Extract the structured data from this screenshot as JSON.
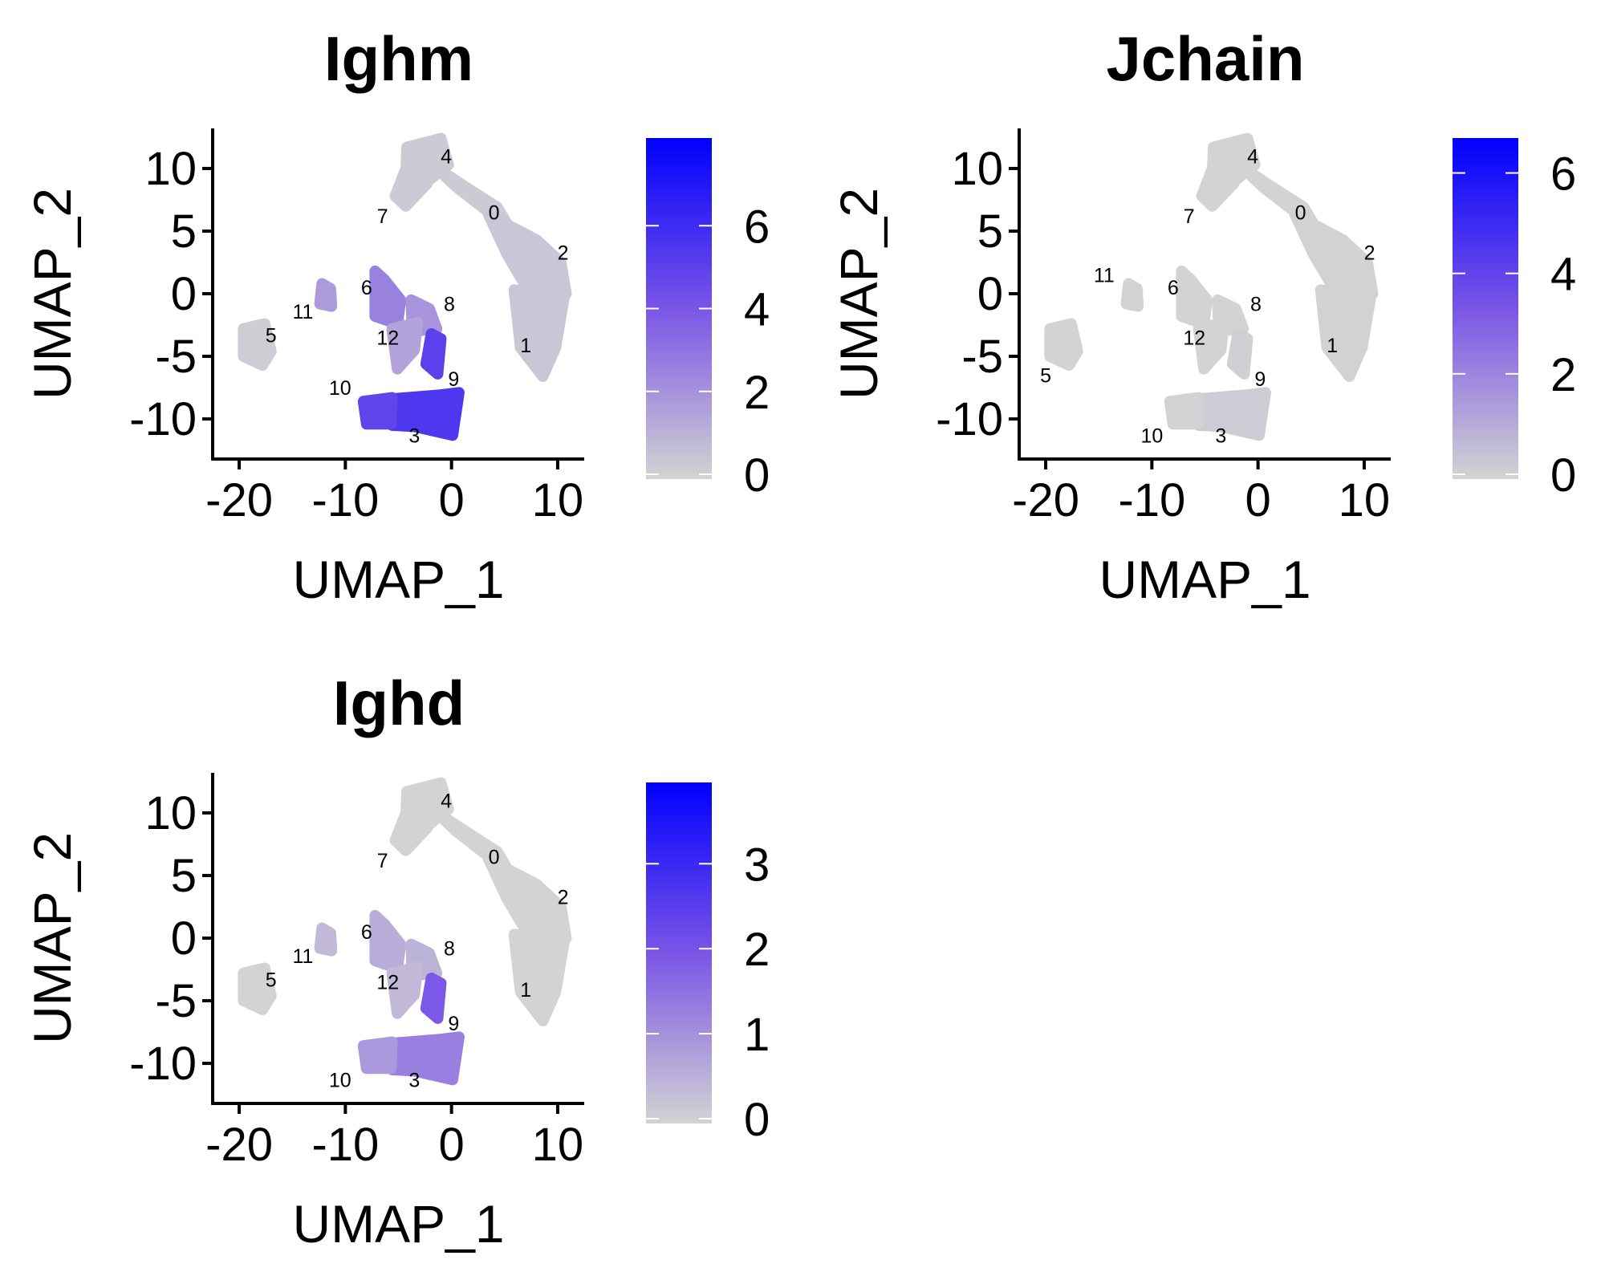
{
  "chart_data": [
    {
      "type": "scatter",
      "title": "Ighm",
      "xlabel": "UMAP_1",
      "ylabel": "UMAP_2",
      "xlim": [
        -22.5,
        12.5
      ],
      "ylim": [
        -13.2,
        13.2
      ],
      "xticks": [
        -20,
        -10,
        0,
        10
      ],
      "yticks": [
        10,
        5,
        0,
        -5,
        -10
      ],
      "xtick_labels": [
        "-20",
        "-10",
        "0",
        "10"
      ],
      "ytick_labels": [
        "10",
        "5",
        "0",
        "-5",
        "-10"
      ],
      "colorbar": {
        "min": 0,
        "max": 8,
        "ticks": [
          0,
          2,
          4,
          6
        ],
        "tick_labels": [
          "0",
          "2",
          "4",
          "6"
        ],
        "low_color": "#d3d3d3",
        "high_color": "#0000ff"
      },
      "cluster_labels": [
        {
          "text": "4",
          "x": -0.5,
          "y": 11
        },
        {
          "text": "7",
          "x": -6.5,
          "y": 6.2
        },
        {
          "text": "0",
          "x": 4,
          "y": 6.5
        },
        {
          "text": "2",
          "x": 10.5,
          "y": 3.3
        },
        {
          "text": "11",
          "x": -14,
          "y": -1.4
        },
        {
          "text": "6",
          "x": -8,
          "y": 0.5
        },
        {
          "text": "8",
          "x": -0.2,
          "y": -0.8
        },
        {
          "text": "5",
          "x": -17,
          "y": -3.3
        },
        {
          "text": "12",
          "x": -6,
          "y": -3.5
        },
        {
          "text": "1",
          "x": 7,
          "y": -4.1
        },
        {
          "text": "10",
          "x": -10.5,
          "y": -7.5
        },
        {
          "text": "9",
          "x": 0.2,
          "y": -6.8
        },
        {
          "text": "3",
          "x": -3.5,
          "y": -11.3
        }
      ],
      "cluster_expression": {
        "4": 0.3,
        "7": 0.3,
        "0": 0.3,
        "2": 0.4,
        "1": 0.4,
        "11": 1.8,
        "6": 2.6,
        "8": 2.0,
        "12": 1.5,
        "5": 0.2,
        "10": 4.8,
        "3": 5.4,
        "9": 5.0
      }
    },
    {
      "type": "scatter",
      "title": "Jchain",
      "xlabel": "UMAP_1",
      "ylabel": "UMAP_2",
      "xlim": [
        -22.5,
        12.5
      ],
      "ylim": [
        -13.2,
        13.2
      ],
      "xticks": [
        -20,
        -10,
        0,
        10
      ],
      "yticks": [
        10,
        5,
        0,
        -5,
        -10
      ],
      "xtick_labels": [
        "-20",
        "-10",
        "0",
        "10"
      ],
      "ytick_labels": [
        "10",
        "5",
        "0",
        "-5",
        "-10"
      ],
      "colorbar": {
        "min": 0,
        "max": 6.6,
        "ticks": [
          0,
          2,
          4,
          6
        ],
        "tick_labels": [
          "0",
          "2",
          "4",
          "6"
        ],
        "low_color": "#d3d3d3",
        "high_color": "#0000ff"
      },
      "cluster_labels": [
        {
          "text": "4",
          "x": -0.5,
          "y": 11
        },
        {
          "text": "7",
          "x": -6.5,
          "y": 6.2
        },
        {
          "text": "0",
          "x": 4,
          "y": 6.5
        },
        {
          "text": "2",
          "x": 10.5,
          "y": 3.3
        },
        {
          "text": "11",
          "x": -14.5,
          "y": 1.5
        },
        {
          "text": "6",
          "x": -8,
          "y": 0.5
        },
        {
          "text": "8",
          "x": -0.2,
          "y": -0.8
        },
        {
          "text": "5",
          "x": -20,
          "y": -6.5
        },
        {
          "text": "12",
          "x": -6,
          "y": -3.5
        },
        {
          "text": "1",
          "x": 7,
          "y": -4.1
        },
        {
          "text": "10",
          "x": -10,
          "y": -11.3
        },
        {
          "text": "9",
          "x": 0.2,
          "y": -6.8
        },
        {
          "text": "3",
          "x": -3.5,
          "y": -11.3
        }
      ],
      "cluster_expression": {
        "4": 0,
        "7": 0,
        "0": 0,
        "2": 0.05,
        "1": 0.05,
        "11": 0,
        "6": 0,
        "8": 0,
        "12": 0,
        "5": 0,
        "10": 0.05,
        "3": 0.2,
        "9": 0.1
      }
    },
    {
      "type": "scatter",
      "title": "Ighd",
      "xlabel": "UMAP_1",
      "ylabel": "UMAP_2",
      "xlim": [
        -22.5,
        12.5
      ],
      "ylim": [
        -13.2,
        13.2
      ],
      "xticks": [
        -20,
        -10,
        0,
        10
      ],
      "yticks": [
        10,
        5,
        0,
        -5,
        -10
      ],
      "xtick_labels": [
        "-20",
        "-10",
        "0",
        "10"
      ],
      "ytick_labels": [
        "10",
        "5",
        "0",
        "-5",
        "-10"
      ],
      "colorbar": {
        "min": 0,
        "max": 3.9,
        "ticks": [
          0,
          1,
          2,
          3
        ],
        "tick_labels": [
          "0",
          "1",
          "2",
          "3"
        ],
        "low_color": "#d3d3d3",
        "high_color": "#0000ff"
      },
      "cluster_labels": [
        {
          "text": "4",
          "x": -0.5,
          "y": 11
        },
        {
          "text": "7",
          "x": -6.5,
          "y": 6.2
        },
        {
          "text": "0",
          "x": 4,
          "y": 6.5
        },
        {
          "text": "2",
          "x": 10.5,
          "y": 3.3
        },
        {
          "text": "11",
          "x": -14,
          "y": -1.4
        },
        {
          "text": "6",
          "x": -8,
          "y": 0.5
        },
        {
          "text": "8",
          "x": -0.2,
          "y": -0.8
        },
        {
          "text": "5",
          "x": -17,
          "y": -3.3
        },
        {
          "text": "12",
          "x": -6,
          "y": -3.5
        },
        {
          "text": "1",
          "x": 7,
          "y": -4.1
        },
        {
          "text": "10",
          "x": -10.5,
          "y": -11.3
        },
        {
          "text": "9",
          "x": 0.2,
          "y": -6.8
        },
        {
          "text": "3",
          "x": -3.5,
          "y": -11.3
        }
      ],
      "cluster_expression": {
        "4": 0,
        "7": 0,
        "0": 0,
        "2": 0,
        "1": 0,
        "11": 0.4,
        "6": 0.6,
        "8": 0.5,
        "12": 0.4,
        "5": 0,
        "10": 0.9,
        "3": 1.3,
        "9": 1.9
      }
    }
  ]
}
